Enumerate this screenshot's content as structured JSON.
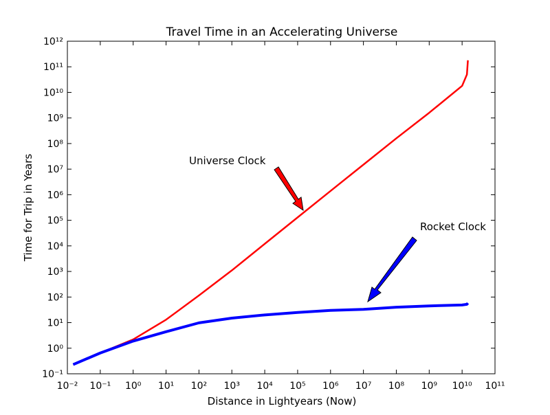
{
  "chart_data": {
    "type": "line",
    "title": "Travel Time in an Accelerating Universe",
    "x_label": "Distance in Lightyears (Now)",
    "y_label": "Time for Trip in Years",
    "xscale": "log",
    "yscale": "log",
    "xlim": [
      0.01,
      100000000000
    ],
    "ylim": [
      0.1,
      1000000000000
    ],
    "xticks": [
      {
        "value": 0.01,
        "label": "10⁻²"
      },
      {
        "value": 0.1,
        "label": "10⁻¹"
      },
      {
        "value": 1,
        "label": "10⁰"
      },
      {
        "value": 10,
        "label": "10¹"
      },
      {
        "value": 100,
        "label": "10²"
      },
      {
        "value": 1000,
        "label": "10³"
      },
      {
        "value": 10000,
        "label": "10⁴"
      },
      {
        "value": 100000,
        "label": "10⁵"
      },
      {
        "value": 1000000,
        "label": "10⁶"
      },
      {
        "value": 10000000,
        "label": "10⁷"
      },
      {
        "value": 100000000,
        "label": "10⁸"
      },
      {
        "value": 1000000000,
        "label": "10⁹"
      },
      {
        "value": 10000000000,
        "label": "10¹⁰"
      },
      {
        "value": 100000000000,
        "label": "10¹¹"
      }
    ],
    "yticks": [
      {
        "value": 0.1,
        "label": "10⁻¹"
      },
      {
        "value": 1,
        "label": "10⁰"
      },
      {
        "value": 10,
        "label": "10¹"
      },
      {
        "value": 100,
        "label": "10²"
      },
      {
        "value": 1000,
        "label": "10³"
      },
      {
        "value": 10000,
        "label": "10⁴"
      },
      {
        "value": 100000,
        "label": "10⁵"
      },
      {
        "value": 1000000,
        "label": "10⁶"
      },
      {
        "value": 10000000,
        "label": "10⁷"
      },
      {
        "value": 100000000,
        "label": "10⁸"
      },
      {
        "value": 1000000000,
        "label": "10⁹"
      },
      {
        "value": 10000000000,
        "label": "10¹⁰"
      },
      {
        "value": 100000000000,
        "label": "10¹¹"
      },
      {
        "value": 1000000000000,
        "label": "10¹²"
      }
    ],
    "x": [
      0.015,
      0.1,
      1,
      10,
      100,
      1000,
      10000,
      100000,
      1000000,
      10000000,
      100000000,
      1000000000,
      10000000000,
      14000000000,
      15000000000
    ],
    "series": [
      {
        "name": "Universe Clock",
        "color": "#ff0000",
        "values": [
          0.23,
          0.65,
          2.2,
          13,
          115,
          1100,
          12000,
          130000,
          1400000,
          15000000,
          160000000,
          1600000000,
          18000000000,
          50000000000,
          180000000000
        ]
      },
      {
        "name": "Rocket Clock",
        "color": "#0000ff",
        "values": [
          0.23,
          0.65,
          1.9,
          4.4,
          9.8,
          15,
          20,
          25,
          30,
          33,
          40,
          45,
          49,
          52,
          58
        ]
      }
    ],
    "annotations": [
      {
        "text": "Universe Clock"
      },
      {
        "text": "Rocket Clock"
      }
    ]
  }
}
